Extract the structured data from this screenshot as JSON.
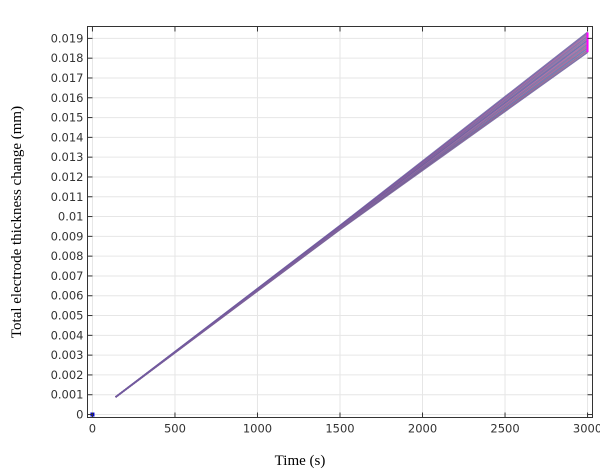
{
  "chart_data": {
    "type": "line",
    "title": "",
    "xlabel": "Time (s)",
    "ylabel": "Total electrode thickness change (mm)",
    "xlim": [
      -30,
      3030
    ],
    "ylim": [
      -0.00015,
      0.0196
    ],
    "xticks": [
      0,
      500,
      1000,
      1500,
      2000,
      2500,
      3000
    ],
    "yticks": [
      0,
      0.001,
      0.002,
      0.003,
      0.004,
      0.005,
      0.006,
      0.007,
      0.008,
      0.009,
      0.01,
      0.011,
      0.012,
      0.013,
      0.014,
      0.015,
      0.016,
      0.017,
      0.018,
      0.019
    ],
    "grid": true,
    "x": [
      140,
      1500,
      3000
    ],
    "series": [
      {
        "values": [
          0.00088,
          0.00935,
          0.0183
        ],
        "color": "#6a5a9a"
      },
      {
        "values": [
          0.00088,
          0.00937,
          0.0184
        ],
        "color": "#8a5a8a"
      },
      {
        "values": [
          0.00088,
          0.00939,
          0.0185
        ],
        "color": "#5a6aa8"
      },
      {
        "values": [
          0.00088,
          0.00941,
          0.0186
        ],
        "color": "#9a5a90"
      },
      {
        "values": [
          0.00088,
          0.00943,
          0.0187
        ],
        "color": "#6a6aa0"
      },
      {
        "values": [
          0.00088,
          0.00945,
          0.0188
        ],
        "color": "#a0609a"
      },
      {
        "values": [
          0.00088,
          0.00947,
          0.0189
        ],
        "color": "#5a5aa0"
      },
      {
        "values": [
          0.00088,
          0.00949,
          0.019
        ],
        "color": "#8a6098"
      },
      {
        "values": [
          0.00088,
          0.00951,
          0.0191
        ],
        "color": "#7060a0"
      },
      {
        "values": [
          0.00088,
          0.00953,
          0.0192
        ],
        "color": "#9a5a98"
      },
      {
        "values": [
          0.00088,
          0.00955,
          0.0193
        ],
        "color": "#6a5aa0"
      }
    ],
    "end_marker": {
      "x": 3000,
      "y_range": [
        0.0183,
        0.0193
      ],
      "color": "#ff00ff"
    },
    "points": [
      {
        "x": 0,
        "y": 0,
        "color": "#0000cc"
      }
    ]
  }
}
